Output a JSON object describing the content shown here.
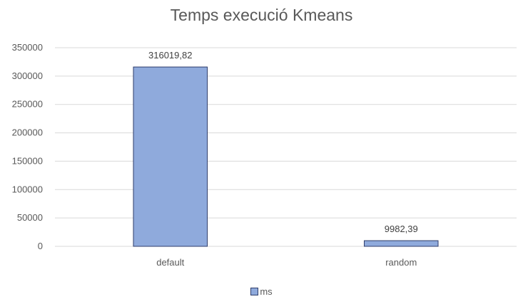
{
  "chart_data": {
    "type": "bar",
    "title": "Temps execució Kmeans",
    "categories": [
      "default",
      "random"
    ],
    "series": [
      {
        "name": "ms",
        "values": [
          316019.82,
          9982.39
        ],
        "labels": [
          "316019,82",
          "9982,39"
        ]
      }
    ],
    "ylim": [
      0,
      350000
    ],
    "yticks": [
      0,
      50000,
      100000,
      150000,
      200000,
      250000,
      300000,
      350000
    ],
    "grid": true,
    "legend": "bottom",
    "colors": {
      "bar_fill": "#8faadc",
      "bar_stroke": "#2f3e6b",
      "grid": "#d9d9d9",
      "text": "#595959"
    }
  }
}
